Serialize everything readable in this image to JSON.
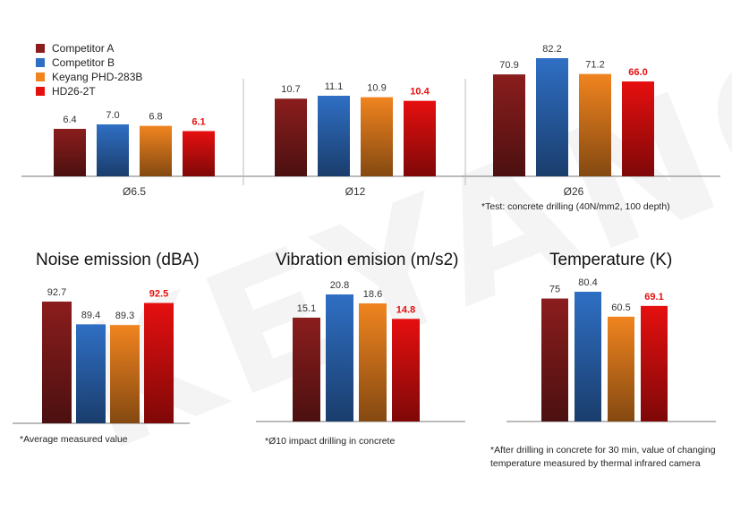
{
  "watermark": "KEYANG",
  "legend": [
    {
      "name": "Competitor A",
      "color": "#8b1d1d"
    },
    {
      "name": "Competitor B",
      "color": "#2f6fc4"
    },
    {
      "name": "Keyang PHD-283B",
      "color": "#f0841f"
    },
    {
      "name": "HD26-2T",
      "color": "#e60f0f"
    }
  ],
  "highlight_color": "#e60f0f",
  "notes": {
    "drilling": "*Test: concrete drilling (40N/mm2, 100 depth)",
    "noise": "*Average measured value",
    "vibration": "*Ø10 impact drilling in concrete",
    "temperature_1": "*After drilling in concrete for 30 min, value of changing",
    "temperature_2": "temperature measured by thermal infrared camera"
  },
  "chart_data": [
    {
      "type": "bar",
      "title": "",
      "categories": [
        "Ø6.5",
        "Ø12",
        "Ø26"
      ],
      "series": [
        {
          "name": "Competitor A",
          "values": [
            6.4,
            10.7,
            70.9
          ]
        },
        {
          "name": "Competitor B",
          "values": [
            7.0,
            11.1,
            82.2
          ]
        },
        {
          "name": "Keyang PHD-283B",
          "values": [
            6.8,
            10.9,
            71.2
          ]
        },
        {
          "name": "HD26-2T",
          "values": [
            6.1,
            10.4,
            66.0
          ]
        }
      ],
      "value_labels": [
        [
          "6.4",
          "7.0",
          "6.8",
          "6.1"
        ],
        [
          "10.7",
          "11.1",
          "10.9",
          "10.4"
        ],
        [
          "70.9",
          "82.2",
          "71.2",
          "66.0"
        ]
      ],
      "legend": "top-left",
      "grid": false
    },
    {
      "type": "bar",
      "title": "Noise emission (dBA)",
      "categories": [
        "Competitor A",
        "Competitor B",
        "Keyang PHD-283B",
        "HD26-2T"
      ],
      "values": [
        92.7,
        89.4,
        89.3,
        92.5
      ],
      "value_labels": [
        "92.7",
        "89.4",
        "89.3",
        "92.5"
      ],
      "grid": false
    },
    {
      "type": "bar",
      "title": "Vibration emision (m/s2)",
      "categories": [
        "Competitor A",
        "Competitor B",
        "Keyang PHD-283B",
        "HD26-2T"
      ],
      "values": [
        15.1,
        20.8,
        18.6,
        14.8
      ],
      "value_labels": [
        "15.1",
        "20.8",
        "18.6",
        "14.8"
      ],
      "grid": false
    },
    {
      "type": "bar",
      "title": "Temperature (K)",
      "categories": [
        "Competitor A",
        "Competitor B",
        "Keyang PHD-283B",
        "HD26-2T"
      ],
      "values": [
        75,
        80.4,
        60.5,
        69.1
      ],
      "value_labels": [
        "75",
        "80.4",
        "60.5",
        "69.1"
      ],
      "grid": false
    }
  ]
}
